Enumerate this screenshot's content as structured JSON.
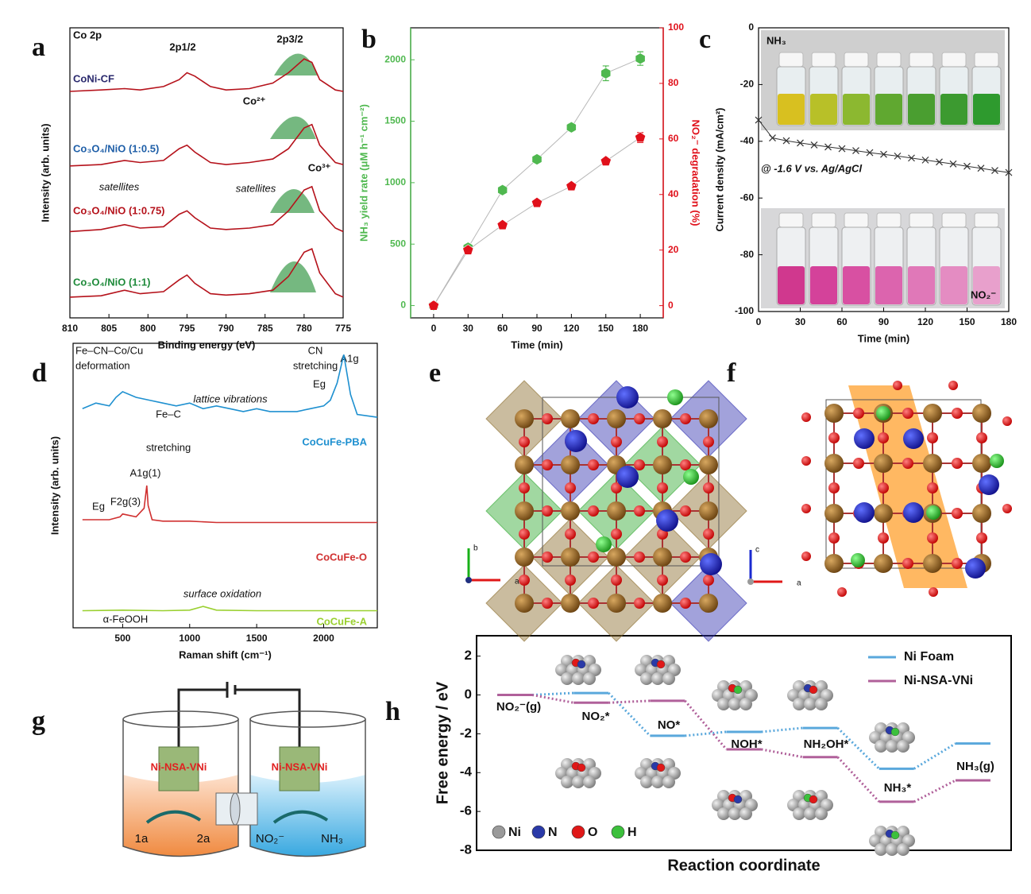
{
  "panel_labels": [
    "a",
    "b",
    "c",
    "d",
    "e",
    "f",
    "g",
    "h"
  ],
  "chart_data": [
    {
      "type": "line",
      "x_label": "Binding energy (eV)",
      "y_label": "Intensity (arb. units)",
      "annotations": [
        "Co 2p",
        "2p1/2",
        "2p3/2",
        "Co²⁺",
        "Co³⁺",
        "satellites",
        "satellites"
      ],
      "xlim": [
        810,
        775
      ],
      "xticks": [
        810,
        805,
        800,
        795,
        790,
        785,
        780,
        775
      ],
      "ylim": [
        0,
        4.2
      ],
      "series": [
        {
          "name": "CoNi-CF",
          "color": "#b5121b",
          "label_color": "#2b2a6e",
          "x": [
            810,
            806,
            803,
            801,
            798,
            796,
            795,
            794,
            792,
            790,
            787,
            784,
            782,
            780,
            779,
            778,
            776,
            775
          ],
          "values": [
            3.28,
            3.3,
            3.32,
            3.3,
            3.35,
            3.45,
            3.55,
            3.5,
            3.35,
            3.3,
            3.32,
            3.4,
            3.55,
            3.75,
            3.7,
            3.45,
            3.3,
            3.28
          ]
        },
        {
          "name": "Co₃O₄/NiO (1:0.5)",
          "color": "#b5121b",
          "label_color": "#1f5fa8",
          "x": [
            810,
            806,
            803,
            801,
            798,
            796,
            795,
            794,
            792,
            790,
            787,
            784,
            782,
            780,
            779,
            778,
            776,
            775
          ],
          "values": [
            2.2,
            2.22,
            2.28,
            2.25,
            2.28,
            2.45,
            2.5,
            2.4,
            2.25,
            2.22,
            2.25,
            2.3,
            2.45,
            2.75,
            2.8,
            2.5,
            2.25,
            2.22
          ]
        },
        {
          "name": "Co₃O₄/NiO (1:0.75)",
          "color": "#b5121b",
          "label_color": "#b5121b",
          "x": [
            810,
            806,
            803,
            801,
            798,
            796,
            795,
            794,
            792,
            790,
            787,
            784,
            782,
            780,
            779,
            778,
            776,
            775
          ],
          "values": [
            1.25,
            1.28,
            1.35,
            1.3,
            1.32,
            1.5,
            1.55,
            1.45,
            1.3,
            1.28,
            1.3,
            1.35,
            1.55,
            1.85,
            1.9,
            1.55,
            1.3,
            1.25
          ]
        },
        {
          "name": "Co₃O₄/NiO (1:1)",
          "color": "#b5121b",
          "label_color": "#1e8a3a",
          "x": [
            810,
            806,
            803,
            801,
            798,
            796,
            795,
            794,
            792,
            790,
            787,
            784,
            782,
            780,
            779,
            778,
            776,
            775
          ],
          "values": [
            0.3,
            0.32,
            0.4,
            0.35,
            0.38,
            0.55,
            0.62,
            0.5,
            0.35,
            0.33,
            0.35,
            0.4,
            0.6,
            0.95,
            1.0,
            0.65,
            0.35,
            0.3
          ]
        }
      ]
    },
    {
      "type": "line",
      "x_label": "Time (min)",
      "y_label": "NH₃ yield rate (μM h⁻¹ cm⁻²)",
      "y2_label": "NO₂⁻ degradation (%)",
      "xlim": [
        -20,
        200
      ],
      "xticks": [
        0,
        30,
        60,
        90,
        120,
        150,
        180
      ],
      "ylim": [
        -100,
        2260
      ],
      "yticks": [
        0,
        500,
        1000,
        1500,
        2000
      ],
      "y2lim": [
        -4.4,
        100
      ],
      "y2ticks": [
        0,
        20,
        40,
        60,
        80,
        100
      ],
      "line_color": "#b8b8b8",
      "series": [
        {
          "color": "#4fb84f",
          "marker": "hexagon",
          "x": [
            0,
            30,
            60,
            90,
            120,
            150,
            180
          ],
          "values": [
            0,
            470,
            940,
            1190,
            1450,
            1890,
            2010
          ],
          "errors": [
            0,
            20,
            20,
            25,
            30,
            60,
            55
          ]
        },
        {
          "color": "#e0101a",
          "marker": "pentagon",
          "axis": "y2",
          "x": [
            0,
            30,
            60,
            90,
            120,
            150,
            180
          ],
          "values": [
            0,
            20,
            29,
            37,
            43,
            52,
            60.5
          ],
          "errors": [
            0,
            0.8,
            0.8,
            0.8,
            0.8,
            1,
            1.8
          ]
        }
      ]
    },
    {
      "type": "line",
      "x_label": "Time (min)",
      "y_label": "Current density (mA/cm²)",
      "annotations": [
        "NH₃",
        "@ -1.6 V vs. Ag/AgCl",
        "NO₂⁻"
      ],
      "xlim": [
        0,
        180
      ],
      "xticks": [
        0,
        30,
        60,
        90,
        120,
        150,
        180
      ],
      "ylim": [
        -100,
        0
      ],
      "yticks": [
        0,
        -20,
        -40,
        -60,
        -80,
        -100
      ],
      "series": [
        {
          "color": "#333333",
          "marker": "cross",
          "x": [
            0,
            10,
            20,
            30,
            40,
            50,
            60,
            70,
            80,
            90,
            100,
            110,
            120,
            130,
            140,
            150,
            160,
            170,
            180
          ],
          "values": [
            -32.5,
            -38.8,
            -39.8,
            -40.6,
            -41.3,
            -42.0,
            -42.6,
            -43.3,
            -44.0,
            -44.6,
            -45.2,
            -45.9,
            -46.6,
            -47.3,
            -48.0,
            -48.8,
            -49.5,
            -50.3,
            -51.0
          ]
        }
      ]
    },
    {
      "type": "line",
      "x_label": "Raman shift (cm⁻¹)",
      "y_label": "Intensity (arb. units)",
      "annotations": [
        "Fe–CN–Co/Cu",
        "deformation",
        "CN",
        "stretching",
        "A1g",
        "Eg",
        "lattice vibrations",
        "Fe–C",
        "stretching",
        "A1g(1)",
        "F2g(3)",
        "Eg",
        "surface oxidation",
        "α-FeOOH"
      ],
      "xlim": [
        130,
        2400
      ],
      "xticks": [
        500,
        1000,
        1500,
        2000
      ],
      "ylim": [
        0,
        10
      ],
      "series": [
        {
          "name": "CoCuFe-PBA",
          "color": "#1e90d0",
          "x": [
            200,
            300,
            400,
            450,
            500,
            600,
            700,
            800,
            900,
            1000,
            1100,
            1200,
            1300,
            1400,
            1500,
            1600,
            1700,
            1800,
            1900,
            2000,
            2050,
            2100,
            2150,
            2200,
            2250,
            2400
          ],
          "values": [
            7.7,
            7.9,
            7.8,
            8.1,
            8.3,
            8.1,
            8.0,
            7.9,
            7.8,
            7.9,
            7.7,
            7.8,
            7.7,
            7.6,
            7.7,
            7.6,
            7.6,
            7.6,
            7.7,
            7.8,
            8.0,
            8.6,
            9.6,
            8.2,
            7.5,
            7.4
          ]
        },
        {
          "name": "CoCuFe-O",
          "color": "#d03030",
          "x": [
            200,
            300,
            400,
            480,
            500,
            600,
            660,
            680,
            690,
            720,
            800,
            1000,
            1200,
            1400,
            1600,
            1800,
            2000,
            2200,
            2400
          ],
          "values": [
            3.8,
            3.8,
            3.8,
            3.9,
            4.0,
            3.9,
            4.2,
            5.0,
            4.3,
            3.8,
            3.75,
            3.75,
            3.7,
            3.7,
            3.7,
            3.7,
            3.7,
            3.7,
            3.7
          ]
        },
        {
          "name": "CoCuFe-A",
          "color": "#9ad030",
          "x": [
            200,
            500,
            800,
            1000,
            1100,
            1200,
            1500,
            1800,
            2100,
            2400
          ],
          "values": [
            0.6,
            0.62,
            0.6,
            0.62,
            0.75,
            0.62,
            0.6,
            0.6,
            0.6,
            0.6
          ]
        }
      ]
    },
    {
      "type": "levels",
      "x_label": "Reaction coordinate",
      "y_label": "Free energy / eV",
      "categories": [
        "NO₂⁻(g)",
        "NO₂*",
        "NO*",
        "NOH*",
        "NH₂OH*",
        "NH₃*",
        "NH₃(g)"
      ],
      "ylim": [
        -8,
        3.05
      ],
      "yticks": [
        2,
        0,
        -2,
        -4,
        -6,
        -8
      ],
      "legend": "upper right",
      "series": [
        {
          "name": "Ni Foam",
          "color": "#5aa8dc",
          "values": [
            0,
            0.1,
            -2.1,
            -1.9,
            -1.7,
            -3.8,
            -2.5
          ]
        },
        {
          "name": "Ni-NSA-VNi",
          "color": "#b0609a",
          "values": [
            0,
            -0.4,
            -0.3,
            -2.8,
            -3.2,
            -5.5,
            -4.4
          ]
        }
      ],
      "atom_legend": [
        "Ni",
        "N",
        "O",
        "H"
      ],
      "atom_colors": [
        "#9a9a9a",
        "#2a3aa8",
        "#e01818",
        "#3cc03c"
      ]
    }
  ],
  "structures": [
    {
      "axes": [
        "b",
        "a"
      ]
    },
    {
      "axes": [
        "c",
        "a"
      ]
    }
  ],
  "cell_diagram": {
    "electrodes": [
      "Ni-NSA-VNi",
      "Ni-NSA-VNi"
    ],
    "left_reaction": [
      "1a",
      "2a"
    ],
    "right_reaction": [
      "NO₂⁻",
      "NH₃"
    ]
  }
}
